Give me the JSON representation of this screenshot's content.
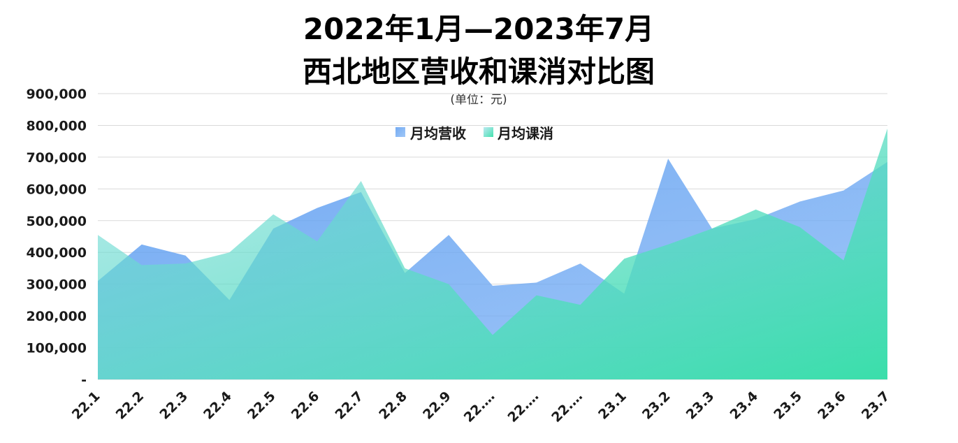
{
  "chart_data": {
    "type": "area",
    "title_line1": "2022年1月—2023年7月",
    "title_line2": "西北地区营收和课消对比图",
    "unit_label": "(单位：元)",
    "ylim": [
      0,
      900000
    ],
    "yticks": [
      "-",
      "100,000",
      "200,000",
      "300,000",
      "400,000",
      "500,000",
      "600,000",
      "700,000",
      "800,000",
      "900,000"
    ],
    "grid": true,
    "legend_position": "top-center",
    "categories": [
      "22.1",
      "22.2",
      "22.3",
      "22.4",
      "22.5",
      "22.6",
      "22.7",
      "22.8",
      "22.9",
      "22.…",
      "22.…",
      "22.…",
      "23.1",
      "23.2",
      "23.3",
      "23.4",
      "23.5",
      "23.6",
      "23.7"
    ],
    "series": [
      {
        "name": "月均营收",
        "color": "#5b9cf0",
        "values": [
          310000,
          425000,
          390000,
          250000,
          475000,
          540000,
          590000,
          335000,
          455000,
          295000,
          305000,
          365000,
          270000,
          695000,
          475000,
          505000,
          560000,
          595000,
          685000
        ]
      },
      {
        "name": "月均课消",
        "color": "#3ee0a8",
        "values": [
          455000,
          360000,
          365000,
          400000,
          520000,
          435000,
          625000,
          350000,
          300000,
          140000,
          265000,
          235000,
          380000,
          425000,
          475000,
          535000,
          480000,
          375000,
          790000
        ]
      }
    ]
  }
}
